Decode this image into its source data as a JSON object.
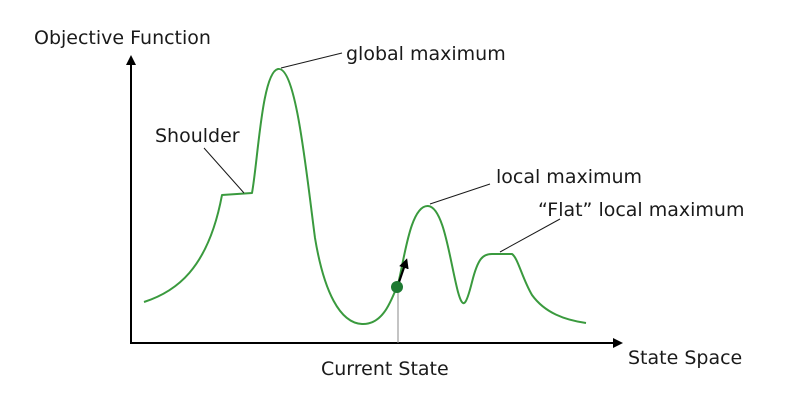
{
  "axes": {
    "y_label": "Objective Function",
    "x_label": "State Space"
  },
  "annotations": {
    "global_max": "global maximum",
    "shoulder": "Shoulder",
    "local_max": "local maximum",
    "flat_local_max": "“Flat” local maximum",
    "current_state": "Current State"
  },
  "colors": {
    "curve": "#3a9a3e",
    "current_state_dot": "#1e7a32",
    "axes": "#000000"
  }
}
